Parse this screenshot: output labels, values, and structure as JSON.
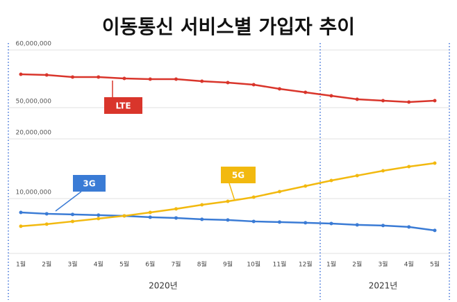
{
  "chart_data": {
    "type": "line",
    "title": "이동통신 서비스별 가입자 추이",
    "categories": [
      "1월",
      "2월",
      "3월",
      "4월",
      "5월",
      "6월",
      "7월",
      "8월",
      "9월",
      "10월",
      "11월",
      "12월",
      "1월",
      "2월",
      "3월",
      "4월",
      "5월"
    ],
    "groups": [
      {
        "label": "2020년",
        "span": [
          0,
          11
        ]
      },
      {
        "label": "2021년",
        "span": [
          12,
          16
        ]
      }
    ],
    "ylim": [
      800000,
      20000000
    ],
    "yticks": [
      {
        "value": 10000000,
        "label": "10,000,000"
      },
      {
        "value": 20000000,
        "label": "20,000,000"
      }
    ],
    "y2lim": [
      50000000,
      60000000
    ],
    "y2ticks": [
      {
        "value": 50000000,
        "label": "50,000,000"
      },
      {
        "value": 60000000,
        "label": "60,000,000"
      }
    ],
    "grid": true,
    "series": [
      {
        "name": "LTE",
        "color": "#d9352b",
        "axis": "y2",
        "values": [
          55780000,
          55660000,
          55300000,
          55300000,
          55060000,
          54940000,
          54940000,
          54580000,
          54340000,
          53980000,
          53250000,
          52650000,
          52050000,
          51450000,
          51200000,
          50960000,
          51200000
        ]
      },
      {
        "name": "3G",
        "color": "#3a7bd5",
        "values": [
          7670000,
          7440000,
          7330000,
          7210000,
          7090000,
          6860000,
          6740000,
          6510000,
          6400000,
          6160000,
          6050000,
          5930000,
          5810000,
          5580000,
          5470000,
          5230000,
          4650000
        ]
      },
      {
        "name": "5G",
        "color": "#f2b90f",
        "values": [
          5350000,
          5700000,
          6160000,
          6630000,
          7090000,
          7670000,
          8260000,
          8950000,
          9530000,
          10230000,
          11160000,
          12090000,
          13020000,
          13840000,
          14650000,
          15350000,
          15930000
        ]
      }
    ]
  }
}
